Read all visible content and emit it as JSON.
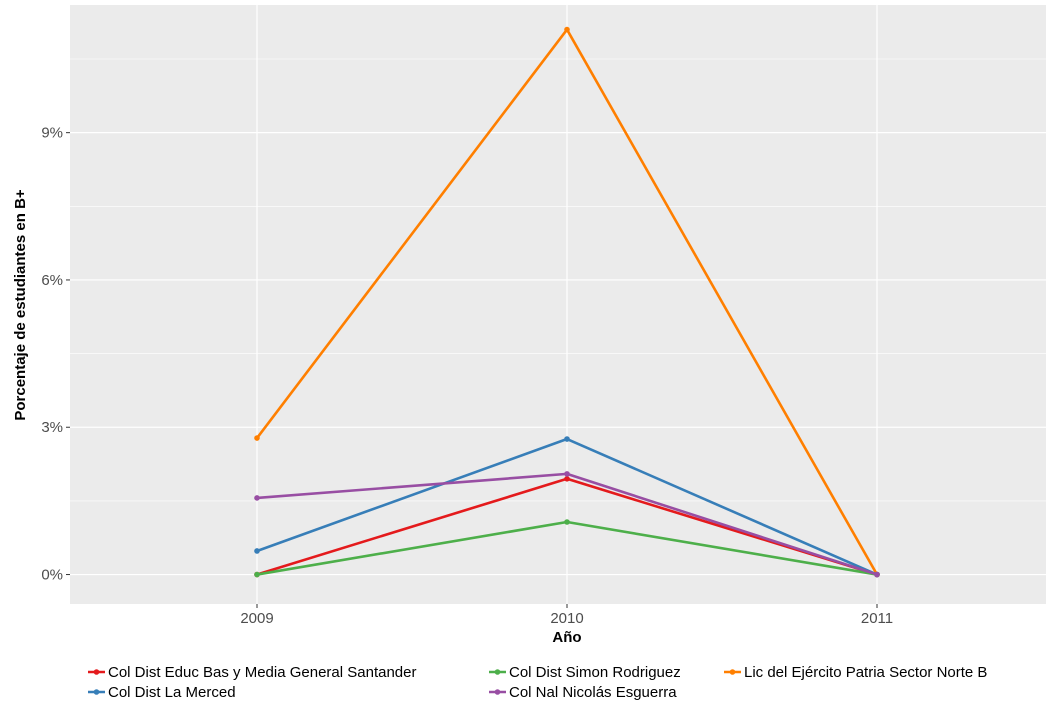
{
  "chart_data": {
    "type": "line",
    "x": [
      "2009",
      "2010",
      "2011"
    ],
    "xlabel": "Año",
    "ylabel": "Porcentaje de estudiantes en B+",
    "ylim": [
      -0.6,
      11.6
    ],
    "yticks": [
      0,
      3,
      6,
      9
    ],
    "ytick_labels": [
      "0%",
      "3%",
      "6%",
      "9%"
    ],
    "grid": true,
    "legend_position": "bottom",
    "series": [
      {
        "name": "Col Dist Educ Bas y Media General Santander",
        "color": "#E41A1C",
        "values": [
          0.0,
          1.95,
          0.0
        ]
      },
      {
        "name": "Col Dist Simon Rodriguez",
        "color": "#4DAF4A",
        "values": [
          0.0,
          1.07,
          0.0
        ]
      },
      {
        "name": "Lic del Ejército Patria Sector Norte B",
        "color": "#FF7F00",
        "values": [
          2.78,
          11.1,
          0.0
        ]
      },
      {
        "name": "Col Dist La Merced",
        "color": "#377EB8",
        "values": [
          0.48,
          2.76,
          0.0
        ]
      },
      {
        "name": "Col Nal Nicolás Esguerra",
        "color": "#984EA3",
        "values": [
          1.56,
          2.05,
          0.0
        ]
      }
    ]
  }
}
